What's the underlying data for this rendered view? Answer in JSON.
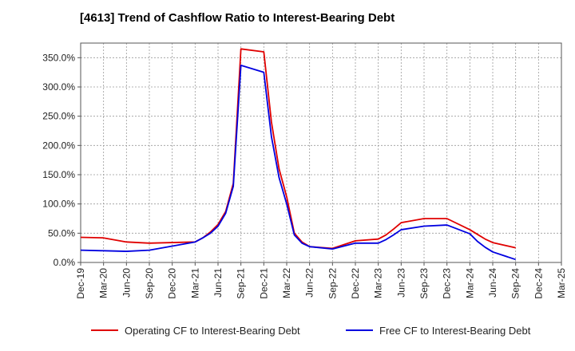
{
  "title": "[4613]  Trend of Cashflow Ratio to Interest-Bearing Debt",
  "chart_data": {
    "type": "line",
    "title": "[4613]  Trend of Cashflow Ratio to Interest-Bearing Debt",
    "xlabel": "",
    "ylabel": "",
    "ylim": [
      0,
      375
    ],
    "grid": true,
    "legend_position": "bottom",
    "y_tick_values": [
      0,
      50,
      100,
      150,
      200,
      250,
      300,
      350
    ],
    "y_tick_labels": [
      "0.0%",
      "50.0%",
      "100.0%",
      "150.0%",
      "200.0%",
      "250.0%",
      "300.0%",
      "350.0%"
    ],
    "x_ticks": [
      "Dec-19",
      "Mar-20",
      "Jun-20",
      "Sep-20",
      "Dec-20",
      "Mar-21",
      "Jun-21",
      "Sep-21",
      "Dec-21",
      "Mar-22",
      "Jun-22",
      "Sep-22",
      "Dec-22",
      "Mar-23",
      "Jun-23",
      "Sep-23",
      "Dec-23",
      "Mar-24",
      "Jun-24",
      "Sep-24",
      "Dec-24",
      "Mar-25"
    ],
    "series": [
      {
        "name": "Operating CF to Interest-Bearing Debt",
        "color": "#e00000",
        "points": [
          [
            "Dec-19",
            43
          ],
          [
            "Mar-20",
            42
          ],
          [
            "Jun-20",
            35
          ],
          [
            "Sep-20",
            33
          ],
          [
            "Dec-20",
            34
          ],
          [
            "Mar-21",
            35
          ],
          [
            "Apr-21",
            42
          ],
          [
            "May-21",
            52
          ],
          [
            "Jun-21",
            65
          ],
          [
            "Jul-21",
            87
          ],
          [
            "Aug-21",
            135
          ],
          [
            "Sep-21",
            365
          ],
          [
            "Dec-21",
            360
          ],
          [
            "Jan-22",
            240
          ],
          [
            "Feb-22",
            160
          ],
          [
            "Mar-22",
            112
          ],
          [
            "Apr-22",
            50
          ],
          [
            "May-22",
            35
          ],
          [
            "Jun-22",
            27
          ],
          [
            "Sep-22",
            24
          ],
          [
            "Dec-22",
            37
          ],
          [
            "Mar-23",
            40
          ],
          [
            "Apr-23",
            47
          ],
          [
            "May-23",
            57
          ],
          [
            "Jun-23",
            68
          ],
          [
            "Sep-23",
            75
          ],
          [
            "Dec-23",
            75
          ],
          [
            "Mar-24",
            56
          ],
          [
            "Apr-24",
            48
          ],
          [
            "May-24",
            40
          ],
          [
            "Jun-24",
            34
          ],
          [
            "Sep-24",
            25
          ]
        ]
      },
      {
        "name": "Free CF to Interest-Bearing Debt",
        "color": "#0000e0",
        "points": [
          [
            "Dec-19",
            21
          ],
          [
            "Mar-20",
            20
          ],
          [
            "Jun-20",
            19
          ],
          [
            "Sep-20",
            21
          ],
          [
            "Dec-20",
            28
          ],
          [
            "Mar-21",
            35
          ],
          [
            "Apr-21",
            42
          ],
          [
            "May-21",
            50
          ],
          [
            "Jun-21",
            62
          ],
          [
            "Jul-21",
            84
          ],
          [
            "Aug-21",
            130
          ],
          [
            "Sep-21",
            337
          ],
          [
            "Dec-21",
            325
          ],
          [
            "Jan-22",
            215
          ],
          [
            "Feb-22",
            145
          ],
          [
            "Mar-22",
            100
          ],
          [
            "Apr-22",
            47
          ],
          [
            "May-22",
            33
          ],
          [
            "Jun-22",
            27
          ],
          [
            "Sep-22",
            23
          ],
          [
            "Dec-22",
            33
          ],
          [
            "Mar-23",
            33
          ],
          [
            "Apr-23",
            39
          ],
          [
            "May-23",
            47
          ],
          [
            "Jun-23",
            56
          ],
          [
            "Sep-23",
            62
          ],
          [
            "Dec-23",
            64
          ],
          [
            "Mar-24",
            49
          ],
          [
            "Apr-24",
            36
          ],
          [
            "May-24",
            26
          ],
          [
            "Jun-24",
            18
          ],
          [
            "Sep-24",
            5
          ]
        ]
      }
    ]
  }
}
